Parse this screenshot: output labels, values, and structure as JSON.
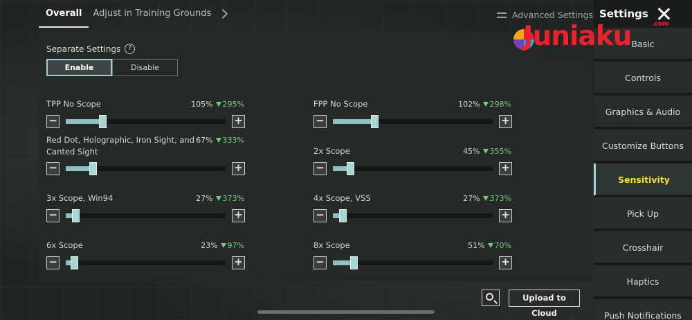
{
  "header": {
    "tabs": [
      {
        "label": "Overall"
      },
      {
        "label": "Adjust in Training Grounds"
      }
    ],
    "advanced_label": "Advanced Settings"
  },
  "separate_settings": {
    "label": "Separate Settings",
    "options": [
      "Enable",
      "Disable"
    ],
    "selected": "Enable"
  },
  "sliders": [
    {
      "label": "TPP No Scope",
      "value": "105%",
      "delta": "295%",
      "level": 0.23
    },
    {
      "label": "FPP No Scope",
      "value": "102%",
      "delta": "298%",
      "level": 0.26
    },
    {
      "label": "Red Dot, Holographic, Iron Sight, and Canted Sight",
      "value": "67%",
      "delta": "333%",
      "level": 0.17
    },
    {
      "label": "2x Scope",
      "value": "45%",
      "delta": "355%",
      "level": 0.11
    },
    {
      "label": "3x Scope, Win94",
      "value": "27%",
      "delta": "373%",
      "level": 0.06
    },
    {
      "label": "4x Scope, VSS",
      "value": "27%",
      "delta": "373%",
      "level": 0.06
    },
    {
      "label": "6x Scope",
      "value": "23%",
      "delta": "97%",
      "level": 0.05
    },
    {
      "label": "8x Scope",
      "value": "51%",
      "delta": "70%",
      "level": 0.13
    }
  ],
  "sidebar": {
    "title": "Settings",
    "items": [
      {
        "label": "Basic"
      },
      {
        "label": "Controls"
      },
      {
        "label": "Graphics & Audio"
      },
      {
        "label": "Customize Buttons"
      },
      {
        "label": "Sensitivity"
      },
      {
        "label": "Pick Up"
      },
      {
        "label": "Crosshair"
      },
      {
        "label": "Haptics"
      },
      {
        "label": "Push Notifications"
      }
    ],
    "active": "Sensitivity"
  },
  "bottom": {
    "upload_label": "Upload to Cloud"
  },
  "watermark": {
    "text": "Juniaku",
    "suffix": ".com"
  },
  "colors": {
    "accent": "#a9d6d4",
    "active_text": "#f2e233",
    "delta_green": "#6ed27a"
  }
}
